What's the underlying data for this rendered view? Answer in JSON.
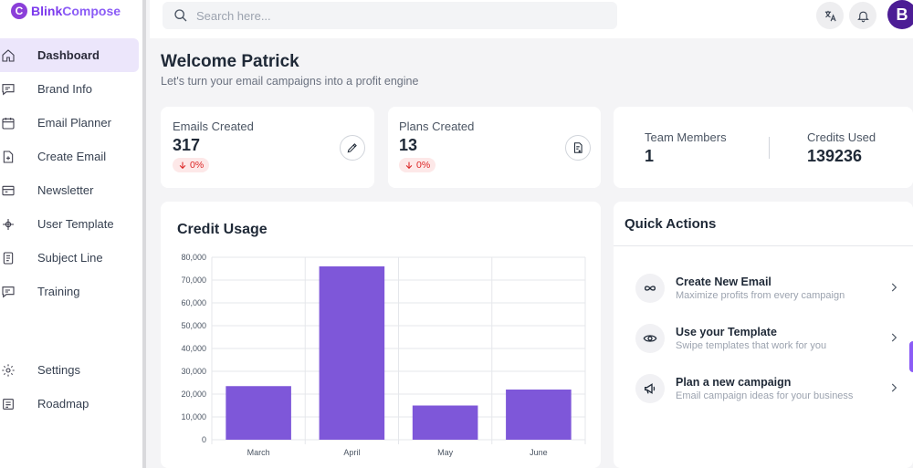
{
  "app": {
    "logo_b": "Blink",
    "logo_c": "Compose"
  },
  "sidebar": {
    "items": [
      {
        "label": "Dashboard",
        "icon": "home-icon",
        "active": true
      },
      {
        "label": "Brand Info",
        "icon": "chat-icon"
      },
      {
        "label": "Email Planner",
        "icon": "calendar-icon"
      },
      {
        "label": "Create Email",
        "icon": "file-plus-icon"
      },
      {
        "label": "Newsletter",
        "icon": "newspaper-icon"
      },
      {
        "label": "User Template",
        "icon": "template-icon"
      },
      {
        "label": "Subject Line",
        "icon": "document-icon"
      },
      {
        "label": "Training",
        "icon": "chat-icon"
      }
    ],
    "bottom": [
      {
        "label": "Settings",
        "icon": "gear-icon"
      },
      {
        "label": "Roadmap",
        "icon": "roadmap-icon"
      }
    ]
  },
  "header": {
    "search_placeholder": "Search here...",
    "avatar_letter": "B"
  },
  "main": {
    "welcome": "Welcome Patrick",
    "subtitle": "Let's turn your email campaigns into a profit engine",
    "stats": [
      {
        "label": "Emails Created",
        "value": "317",
        "delta": "0%"
      },
      {
        "label": "Plans Created",
        "value": "13",
        "delta": "0%"
      }
    ],
    "team": {
      "label": "Team Members",
      "value": "1"
    },
    "credits": {
      "label": "Credits Used",
      "value": "139236"
    }
  },
  "quick_actions": {
    "title": "Quick Actions",
    "items": [
      {
        "name": "Create New Email",
        "desc": "Maximize profits from every campaign",
        "icon": "infinity-icon"
      },
      {
        "name": "Use your Template",
        "desc": "Swipe templates that work for you",
        "icon": "eye-icon"
      },
      {
        "name": "Plan a new campaign",
        "desc": "Email campaign ideas for your business",
        "icon": "megaphone-icon"
      }
    ]
  },
  "chart_data": {
    "type": "bar",
    "title": "Credit Usage",
    "categories": [
      "March",
      "April",
      "May",
      "June"
    ],
    "values": [
      23500,
      76000,
      15000,
      22000
    ],
    "ylim": [
      0,
      80000
    ],
    "yticks": [
      "80,000",
      "70,000",
      "60,000",
      "50,000",
      "40,000",
      "30,000",
      "20,000",
      "10,000",
      "0"
    ],
    "color": "#7e57d9",
    "grid": true
  }
}
